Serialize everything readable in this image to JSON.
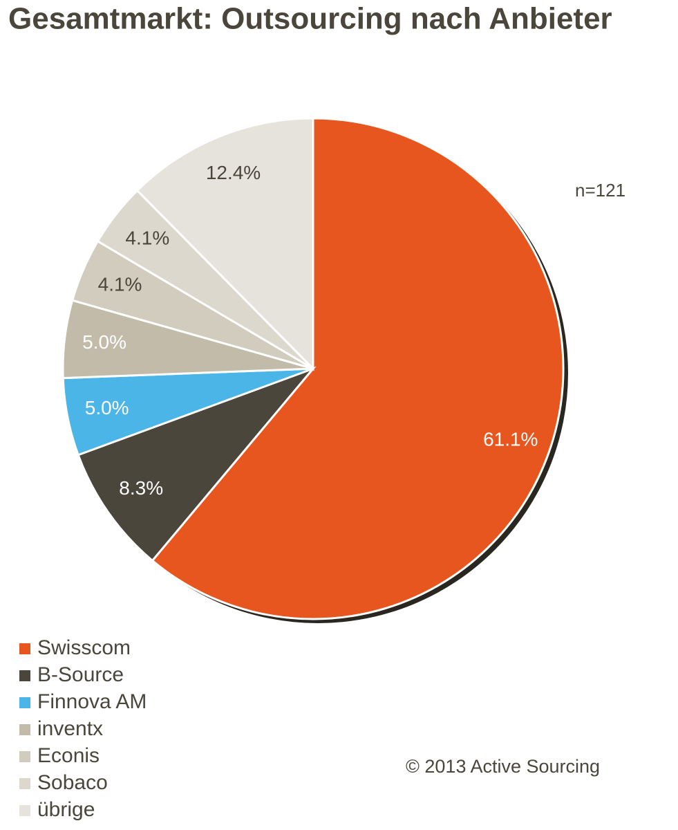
{
  "chart_data": {
    "type": "pie",
    "title": "Gesamtmarkt: Outsourcing nach Anbieter",
    "annotations": [
      "n=121",
      "© 2013 Active Sourcing"
    ],
    "categories": [
      "Swisscom",
      "B-Source",
      "Finnova AM",
      "inventx",
      "Econis",
      "Sobaco",
      "übrige"
    ],
    "values": [
      61.1,
      8.3,
      5.0,
      5.0,
      4.1,
      4.1,
      12.4
    ],
    "value_labels": [
      "61.1%",
      "8.3%",
      "5.0%",
      "5.0%",
      "4.1%",
      "4.1%",
      "12.4%"
    ],
    "colors": [
      "#e8561f",
      "#4a463b",
      "#4cb5e8",
      "#c2bba9",
      "#d2ccbf",
      "#dcd8cd",
      "#e6e3dc"
    ]
  }
}
